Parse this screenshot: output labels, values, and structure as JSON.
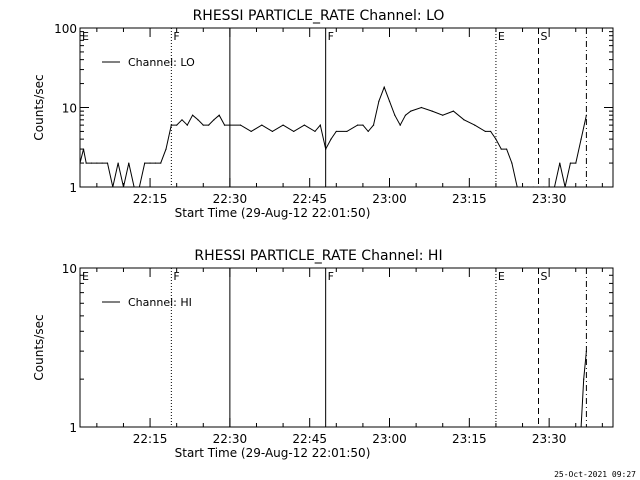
{
  "chart_data": [
    {
      "type": "line",
      "title": "RHESSI PARTICLE_RATE Channel: LO",
      "xlabel": "Start Time (29-Aug-12 22:01:50)",
      "ylabel": "Counts/sec",
      "y_scale": "log",
      "ylim": [
        1,
        100
      ],
      "y_ticks": [
        "1",
        "10",
        "100"
      ],
      "x_ticks": [
        "22:15",
        "22:30",
        "22:45",
        "23:00",
        "23:15",
        "23:30"
      ],
      "xlim": [
        "22:01:50",
        "23:42:00"
      ],
      "grid": false,
      "legend": {
        "entries": [
          "Channel: LO"
        ],
        "placement": "top-left"
      },
      "event_markers": [
        {
          "label": "E",
          "time": "22:01:50",
          "style": "dotted"
        },
        {
          "label": "F",
          "time": "22:19:00",
          "style": "dotted"
        },
        {
          "label": "",
          "time": "22:30:00",
          "style": "solid"
        },
        {
          "label": "F",
          "time": "22:48:00",
          "style": "solid"
        },
        {
          "label": "E",
          "time": "23:20:00",
          "style": "dotted"
        },
        {
          "label": "S",
          "time": "23:28:00",
          "style": "dashed"
        },
        {
          "label": "",
          "time": "23:37:00",
          "style": "dashdot"
        }
      ],
      "series": [
        {
          "name": "Channel: LO",
          "x": [
            "22:01:50",
            "22:02:30",
            "22:03:00",
            "22:04:00",
            "22:05:00",
            "22:06:00",
            "22:07:00",
            "22:08:00",
            "22:09:00",
            "22:10:00",
            "22:11:00",
            "22:12:00",
            "22:13:00",
            "22:14:00",
            "22:15:00",
            "22:16:00",
            "22:17:00",
            "22:18:00",
            "22:19:00",
            "22:20:00",
            "22:21:00",
            "22:22:00",
            "22:23:00",
            "22:24:00",
            "22:25:00",
            "22:26:00",
            "22:27:00",
            "22:28:00",
            "22:29:00",
            "22:30:00",
            "22:32:00",
            "22:34:00",
            "22:36:00",
            "22:38:00",
            "22:40:00",
            "22:42:00",
            "22:44:00",
            "22:46:00",
            "22:47:00",
            "22:48:00",
            "22:49:00",
            "22:50:00",
            "22:52:00",
            "22:54:00",
            "22:55:00",
            "22:56:00",
            "22:57:00",
            "22:58:00",
            "22:59:00",
            "23:00:00",
            "23:01:00",
            "23:02:00",
            "23:03:00",
            "23:04:00",
            "23:06:00",
            "23:08:00",
            "23:10:00",
            "23:12:00",
            "23:14:00",
            "23:16:00",
            "23:18:00",
            "23:19:00",
            "23:20:00",
            "23:21:00",
            "23:22:00",
            "23:23:00",
            "23:24:00",
            "23:25:00",
            "23:26:00",
            "23:27:00",
            "23:28:00",
            "23:29:00",
            "23:30:00",
            "23:31:00",
            "23:32:00",
            "23:33:00",
            "23:34:00",
            "23:35:00",
            "23:36:00",
            "23:37:00"
          ],
          "y": [
            2,
            3,
            2,
            2,
            2,
            2,
            2,
            1,
            2,
            1,
            2,
            1,
            1,
            2,
            2,
            2,
            2,
            3,
            6,
            6,
            7,
            6,
            8,
            7,
            6,
            6,
            7,
            8,
            6,
            6,
            6,
            5,
            6,
            5,
            6,
            5,
            6,
            5,
            6,
            3,
            4,
            5,
            5,
            6,
            6,
            5,
            6,
            12,
            18,
            12,
            8,
            6,
            8,
            9,
            10,
            9,
            8,
            9,
            7,
            6,
            5,
            5,
            4,
            3,
            3,
            2,
            1,
            1,
            1,
            1,
            1,
            1,
            1,
            1,
            2,
            1,
            2,
            2,
            4,
            8
          ]
        }
      ]
    },
    {
      "type": "line",
      "title": "RHESSI PARTICLE_RATE Channel: HI",
      "xlabel": "Start Time (29-Aug-12 22:01:50)",
      "ylabel": "Counts/sec",
      "y_scale": "log",
      "ylim": [
        1,
        10
      ],
      "y_ticks": [
        "1",
        "10"
      ],
      "x_ticks": [
        "22:15",
        "22:30",
        "22:45",
        "23:00",
        "23:15",
        "23:30"
      ],
      "xlim": [
        "22:01:50",
        "23:42:00"
      ],
      "grid": false,
      "legend": {
        "entries": [
          "Channel: HI"
        ],
        "placement": "top-left"
      },
      "event_markers": [
        {
          "label": "E",
          "time": "22:01:50",
          "style": "dotted"
        },
        {
          "label": "F",
          "time": "22:19:00",
          "style": "dotted"
        },
        {
          "label": "",
          "time": "22:30:00",
          "style": "solid"
        },
        {
          "label": "F",
          "time": "22:48:00",
          "style": "solid"
        },
        {
          "label": "E",
          "time": "23:20:00",
          "style": "dotted"
        },
        {
          "label": "S",
          "time": "23:28:00",
          "style": "dashed"
        },
        {
          "label": "",
          "time": "23:37:00",
          "style": "dashdot"
        }
      ],
      "series": [
        {
          "name": "Channel: HI",
          "x": [
            "23:36:00",
            "23:36:30",
            "23:37:00"
          ],
          "y": [
            1,
            2,
            3
          ]
        }
      ]
    }
  ],
  "footer": {
    "timestamp": "25-Oct-2021 09:27"
  }
}
